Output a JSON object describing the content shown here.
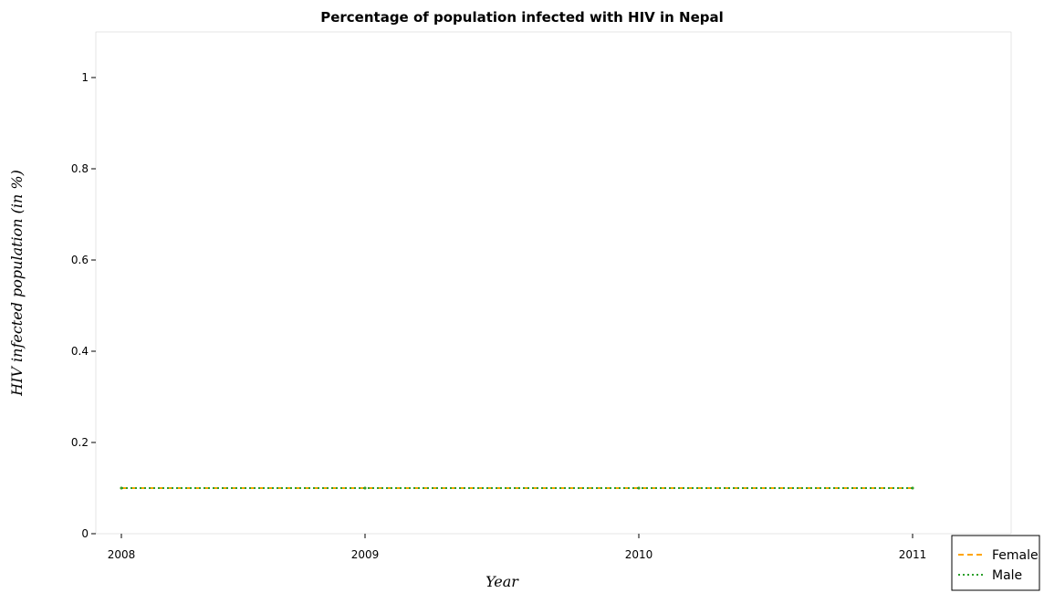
{
  "chart_data": {
    "type": "line",
    "title": "Percentage of population infected with HIV in Nepal",
    "xlabel": "Year",
    "ylabel": "HIV infected population (in %)",
    "categories": [
      "2008",
      "2009",
      "2010",
      "2011"
    ],
    "yticks": [
      "0",
      "0.2",
      "0.4",
      "0.6",
      "0.8",
      "1"
    ],
    "ytick_values": [
      0,
      0.2,
      0.4,
      0.6,
      0.8,
      1.0
    ],
    "ylim": [
      0,
      1.1
    ],
    "grid": false,
    "legend_position": "bottom-right",
    "series": [
      {
        "name": "Female",
        "values": [
          0.1,
          0.1,
          0.1,
          0.1
        ],
        "color": "#ffa500",
        "style": "dashed"
      },
      {
        "name": "Male",
        "values": [
          0.1,
          0.1,
          0.1,
          0.1
        ],
        "color": "#2ca02c",
        "style": "dotted"
      }
    ]
  }
}
